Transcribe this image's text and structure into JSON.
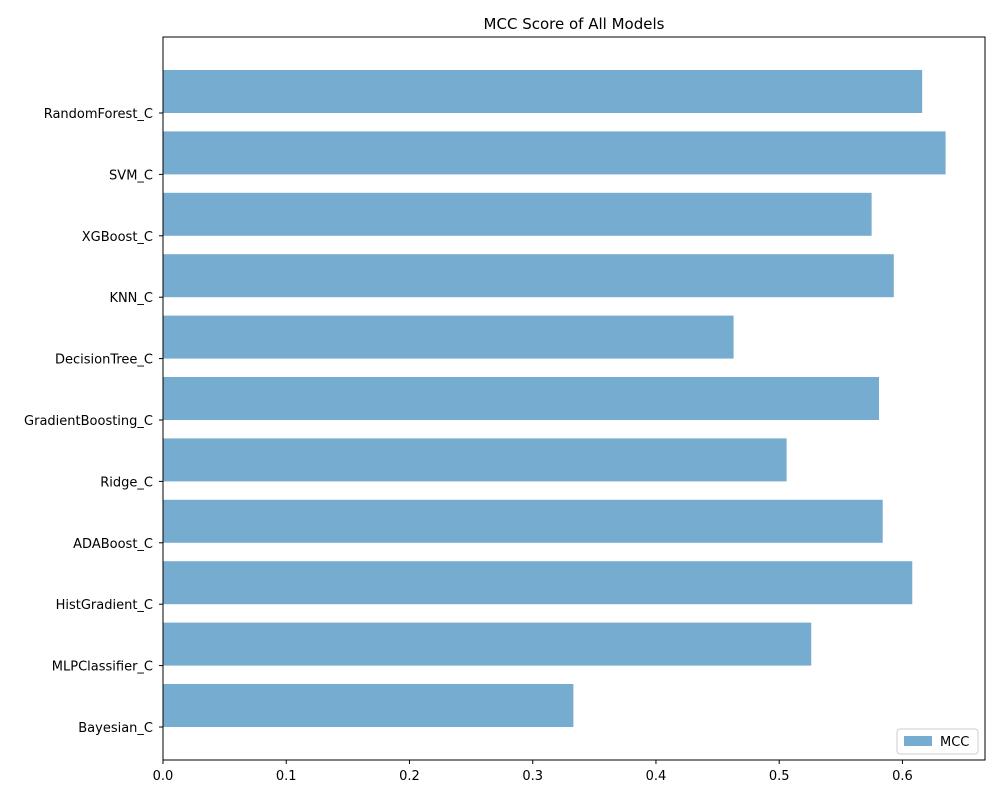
{
  "chart_data": {
    "type": "bar",
    "orientation": "horizontal",
    "title": "MCC Score of All Models",
    "xlabel": "",
    "ylabel": "",
    "categories": [
      "RandomForest_C",
      "SVM_C",
      "XGBoost_C",
      "KNN_C",
      "DecisionTree_C",
      "GradientBoosting_C",
      "Ridge_C",
      "ADABoost_C",
      "HistGradient_C",
      "MLPClassifier_C",
      "Bayesian_C"
    ],
    "series": [
      {
        "name": "MCC",
        "values": [
          0.616,
          0.635,
          0.575,
          0.593,
          0.463,
          0.581,
          0.506,
          0.584,
          0.608,
          0.526,
          0.333
        ]
      }
    ],
    "xlim": [
      0,
      0.667
    ],
    "xticks": [
      "0.0",
      "0.1",
      "0.2",
      "0.3",
      "0.4",
      "0.5",
      "0.6"
    ],
    "grid": false,
    "legend": "lower-right",
    "colors": {
      "bar": "#77acd1",
      "axis": "#000000"
    }
  }
}
